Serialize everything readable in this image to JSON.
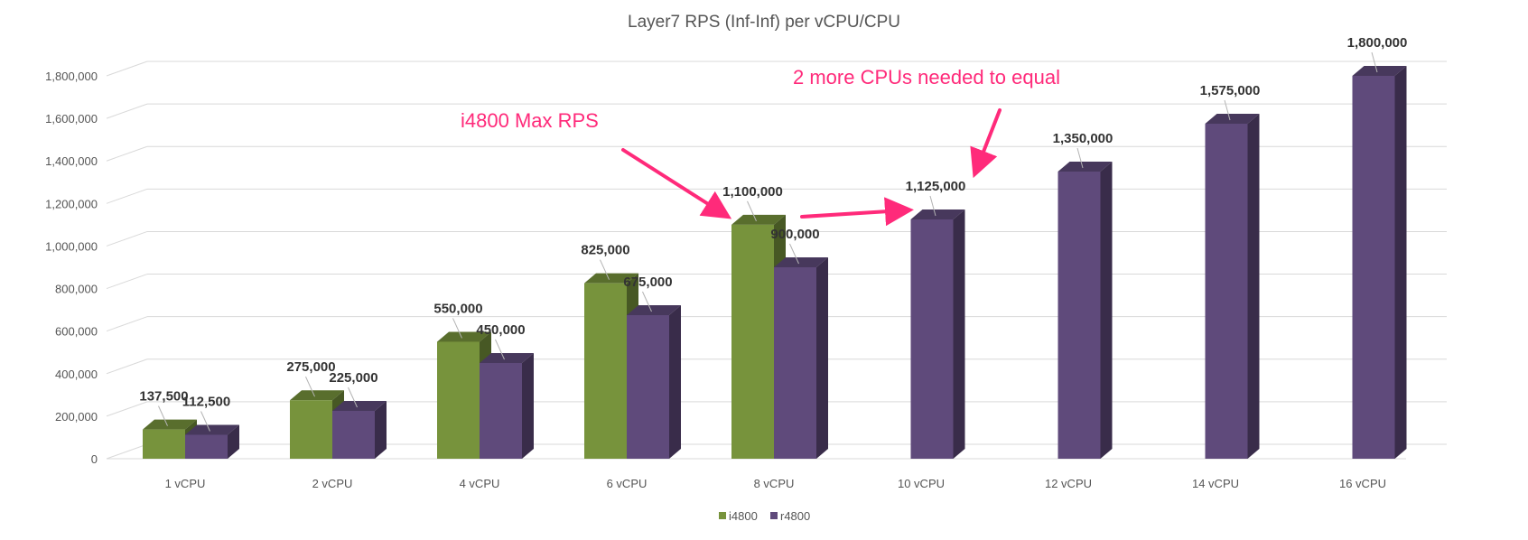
{
  "chart_data": {
    "type": "bar",
    "title": "Layer7 RPS (Inf-Inf) per vCPU/CPU",
    "xlabel": "",
    "ylabel": "",
    "categories": [
      "1 vCPU",
      "2 vCPU",
      "4 vCPU",
      "6 vCPU",
      "8 vCPU",
      "10 vCPU",
      "12 vCPU",
      "14 vCPU",
      "16 vCPU"
    ],
    "series": [
      {
        "name": "i4800",
        "color": "#77933c",
        "values": [
          137500,
          275000,
          550000,
          825000,
          1100000,
          null,
          null,
          null,
          null
        ]
      },
      {
        "name": "r4800",
        "color": "#5f4a7b",
        "values": [
          112500,
          225000,
          450000,
          675000,
          900000,
          1125000,
          1350000,
          1575000,
          1800000
        ]
      }
    ],
    "ylim": [
      0,
      1800000
    ],
    "yticks": [
      0,
      200000,
      400000,
      600000,
      800000,
      1000000,
      1200000,
      1400000,
      1600000,
      1800000
    ],
    "ytick_labels": [
      "0",
      "200,000",
      "400,000",
      "600,000",
      "800,000",
      "1,000,000",
      "1,200,000",
      "1,400,000",
      "1,600,000",
      "1,800,000"
    ],
    "data_labels": [
      [
        "137,500",
        "275,000",
        "550,000",
        "825,000",
        "1,100,000",
        null,
        null,
        null,
        null
      ],
      [
        "112,500",
        "225,000",
        "450,000",
        "675,000",
        "900,000",
        "1,125,000",
        "1,350,000",
        "1,575,000",
        "1,800,000"
      ]
    ],
    "grid": true,
    "legend": "bottom",
    "style": "3d-clustered-column",
    "annotations": [
      {
        "text": "i4800 Max RPS",
        "color": "#ff2a7a"
      },
      {
        "text": "2 more CPUs needed to equal",
        "color": "#ff2a7a"
      }
    ]
  }
}
